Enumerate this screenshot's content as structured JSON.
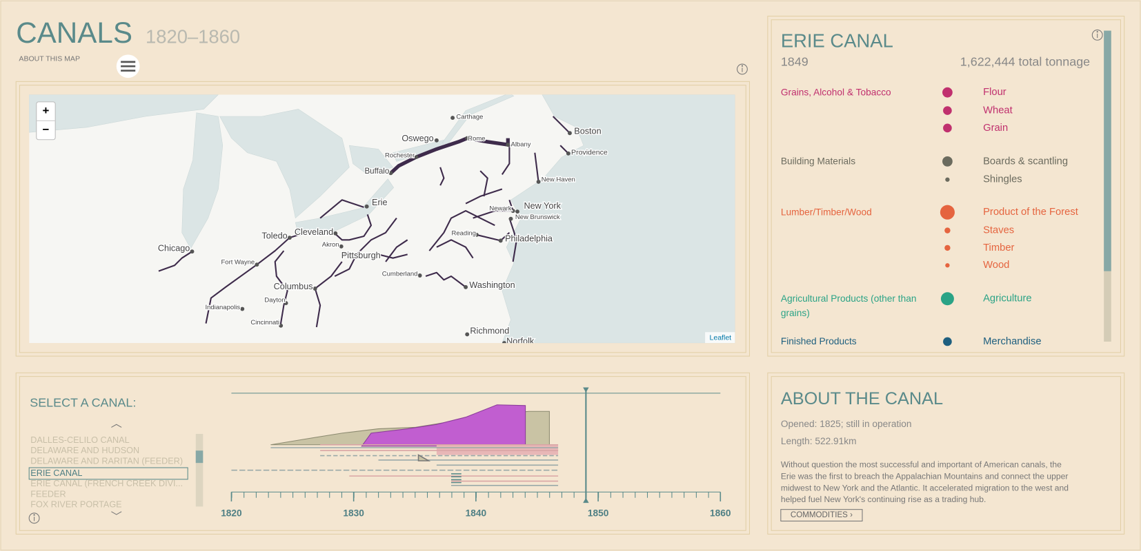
{
  "header": {
    "title": "CANALS",
    "subtitle": "1820–1860",
    "about_link": "ABOUT THIS MAP"
  },
  "map": {
    "zoom_in": "+",
    "zoom_out": "−",
    "attribution": "Leaflet",
    "cities": [
      "Carthage",
      "Oswego",
      "Rome",
      "Albany",
      "Boston",
      "Providence",
      "Rochester",
      "Buffalo",
      "New Haven",
      "Erie",
      "Newark",
      "New York",
      "New Brunswick",
      "Cleveland",
      "Toledo",
      "Reading",
      "Philadelphia",
      "Akron",
      "Pittsburgh",
      "Chicago",
      "Fort Wayne",
      "Cumberland",
      "Columbus",
      "Washington",
      "Dayton",
      "Indianapolis",
      "Cincinnati",
      "Richmond",
      "Norfolk"
    ]
  },
  "commodity_panel": {
    "canal_name": "ERIE CANAL",
    "year": 1849,
    "total_tonnage": "1,622,444 total tonnage",
    "groups": [
      {
        "name": "Grains, Alcohol & Tobacco",
        "color": "#c0306e",
        "items": [
          "Flour",
          "Wheat",
          "Grain"
        ]
      },
      {
        "name": "Building Materials",
        "color": "#6b6b5e",
        "items": [
          "Boards & scantling",
          "Shingles"
        ]
      },
      {
        "name": "Lumber/Timber/Wood",
        "color": "#e5643f",
        "items": [
          "Product of the Forest",
          "Staves",
          "Timber",
          "Wood"
        ]
      },
      {
        "name": "Agricultural Products (other than grains)",
        "color": "#2aa386",
        "items": [
          "Agriculture"
        ]
      },
      {
        "name": "Finished Products",
        "color": "#1e5f7f",
        "items": [
          "Merchandise"
        ]
      }
    ]
  },
  "canal_selector": {
    "label": "SELECT A CANAL:",
    "canals": [
      "DALLES-CELILO CANAL",
      "DELAWARE AND HUDSON",
      "DELAWARE AND RARITAN (FEEDER)",
      "ERIE CANAL",
      "ERIE CANAL (FRENCH CREEK DIVI...",
      "FEEDER",
      "FOX RIVER PORTAGE"
    ],
    "selected": "ERIE CANAL"
  },
  "timeline": {
    "xlim": [
      1820,
      1860
    ],
    "xticks": [
      1820,
      1830,
      1840,
      1850,
      1860
    ]
  },
  "about_panel": {
    "title": "ABOUT THE CANAL",
    "opened": "Opened: 1825; still in operation",
    "length": "Length: 522.91km",
    "description_lines": [
      "Without question the most successful and important of American canals, the",
      "Erie was the first to breach the Appalachian Mountains and connect the upper",
      "midwest to New York and the Atlantic. It accelerated migration to the west and",
      "helped fuel New York's continuing rise as a trading hub."
    ],
    "button": "COMMODITIES ›"
  }
}
